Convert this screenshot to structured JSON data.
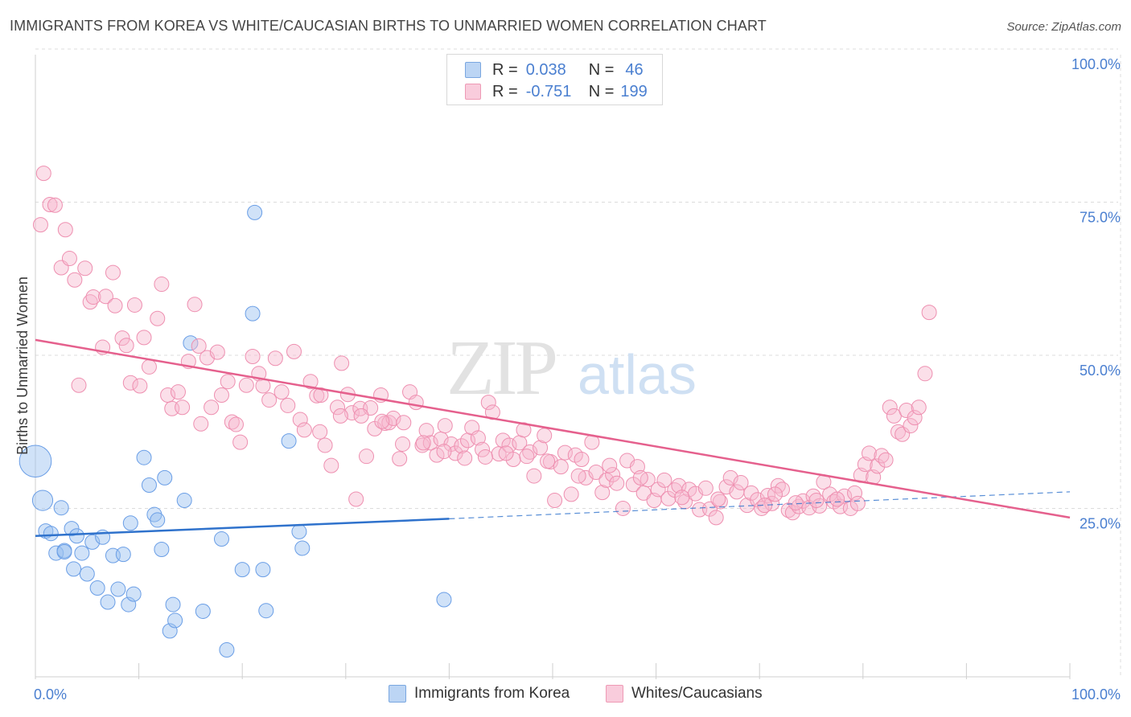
{
  "title": "IMMIGRANTS FROM KOREA VS WHITE/CAUCASIAN BIRTHS TO UNMARRIED WOMEN CORRELATION CHART",
  "source": "Source: ZipAtlas.com",
  "watermark": {
    "zip": "ZIP",
    "atlas": "atlas"
  },
  "legend": {
    "r_label": "R =",
    "n_label": "N =",
    "rows": [
      {
        "r": "0.038",
        "n": "46",
        "color": "#a9c8f0",
        "border": "#7aa7e0"
      },
      {
        "r": "-0.751",
        "n": "199",
        "color": "#f7bfd2",
        "border": "#ee9ab5"
      }
    ]
  },
  "bottom_legend": [
    {
      "label": "Immigrants from Korea",
      "color": "#a9c8f0",
      "border": "#7aa7e0"
    },
    {
      "label": "Whites/Caucasians",
      "color": "#f7bfd2",
      "border": "#ee9ab5"
    }
  ],
  "chart_data": {
    "type": "scatter",
    "title": "IMMIGRANTS FROM KOREA VS WHITE/CAUCASIAN BIRTHS TO UNMARRIED WOMEN CORRELATION CHART",
    "xlabel": "",
    "ylabel": "Births to Unmarried Women",
    "xlim": [
      0,
      100
    ],
    "ylim": [
      0,
      100
    ],
    "x_tick_labels": [
      "0.0%",
      "100.0%"
    ],
    "y_tick_labels": [
      "25.0%",
      "50.0%",
      "75.0%",
      "100.0%"
    ],
    "y_ticks": [
      25,
      50,
      75,
      100
    ],
    "grid": true,
    "series": [
      {
        "name": "Immigrants from Korea",
        "color": "#6a9ee6",
        "fill": "rgba(150,190,240,0.45)",
        "trend": {
          "x": [
            0,
            40
          ],
          "y": [
            23.0,
            25.8
          ],
          "dashed_to": [
            100,
            30.2
          ],
          "line_color": "#2f72cc"
        },
        "points": [
          [
            0,
            35.2,
            2.2
          ],
          [
            0.7,
            28.8,
            1.4
          ],
          [
            1,
            23.8,
            1
          ],
          [
            1.5,
            23.4,
            1
          ],
          [
            2.5,
            27.6,
            1
          ],
          [
            3.5,
            24.2,
            1
          ],
          [
            2,
            20.2,
            1
          ],
          [
            4,
            23,
            1
          ],
          [
            3.7,
            17.6,
            1
          ],
          [
            2.8,
            20.6,
            1
          ],
          [
            5.5,
            22,
            1
          ],
          [
            6.5,
            22.8,
            1
          ],
          [
            4.5,
            20.2,
            1
          ],
          [
            5,
            16.8,
            1
          ],
          [
            6,
            14.5,
            1
          ],
          [
            7,
            12.2,
            1
          ],
          [
            7.5,
            19.8,
            1
          ],
          [
            8,
            14.3,
            1
          ],
          [
            8.5,
            20,
            1
          ],
          [
            9,
            11.8,
            1
          ],
          [
            9.5,
            13.5,
            1
          ],
          [
            10.5,
            35.8,
            1
          ],
          [
            11,
            31.3,
            1
          ],
          [
            11.5,
            26.5,
            1
          ],
          [
            11.8,
            25.6,
            1
          ],
          [
            12.2,
            20.8,
            1
          ],
          [
            12.5,
            32.5,
            1
          ],
          [
            13,
            7.5,
            1
          ],
          [
            13.5,
            9.2,
            1
          ],
          [
            13.3,
            11.8,
            1
          ],
          [
            14.4,
            28.8,
            1
          ],
          [
            15,
            54.5,
            1
          ],
          [
            16.2,
            10.7,
            1
          ],
          [
            18,
            22.5,
            1
          ],
          [
            18.5,
            4.4,
            1
          ],
          [
            20,
            17.5,
            1
          ],
          [
            21,
            59.3,
            1
          ],
          [
            21.2,
            75.8,
            1
          ],
          [
            22,
            17.5,
            1
          ],
          [
            22.3,
            10.8,
            1
          ],
          [
            24.5,
            38.5,
            1
          ],
          [
            25.5,
            23.7,
            1
          ],
          [
            25.8,
            21,
            1
          ],
          [
            39.5,
            12.6,
            1
          ],
          [
            2.8,
            20.4,
            1
          ],
          [
            9.2,
            25.1,
            1
          ]
        ]
      },
      {
        "name": "Whites/Caucasians",
        "color": "#ee8fb0",
        "fill": "rgba(247,185,206,0.45)",
        "trend": {
          "x": [
            0,
            100
          ],
          "y": [
            55.0,
            26.0
          ],
          "line_color": "#e5608d"
        },
        "points": [
          [
            0.5,
            73.8
          ],
          [
            0.8,
            82.2
          ],
          [
            1.4,
            77.1
          ],
          [
            1.9,
            77.0
          ],
          [
            2.5,
            66.8
          ],
          [
            2.9,
            73.0
          ],
          [
            3.3,
            68.3
          ],
          [
            3.8,
            64.8
          ],
          [
            4.2,
            47.6
          ],
          [
            4.8,
            66.7
          ],
          [
            5.3,
            61.2
          ],
          [
            5.6,
            62.0
          ],
          [
            6.5,
            53.8
          ],
          [
            6.8,
            62.1
          ],
          [
            7.5,
            66.0
          ],
          [
            7.7,
            60.6
          ],
          [
            8.4,
            55.3
          ],
          [
            8.8,
            54.1
          ],
          [
            9.2,
            48.0
          ],
          [
            9.6,
            60.7
          ],
          [
            10.1,
            47.5
          ],
          [
            10.5,
            55.4
          ],
          [
            11.0,
            50.6
          ],
          [
            11.8,
            58.5
          ],
          [
            12.2,
            64.1
          ],
          [
            12.8,
            46.0
          ],
          [
            13.2,
            43.8
          ],
          [
            13.8,
            46.5
          ],
          [
            14.2,
            44.0
          ],
          [
            14.8,
            51.5
          ],
          [
            15.4,
            60.8
          ],
          [
            15.8,
            54.0
          ],
          [
            16.0,
            41.3
          ],
          [
            16.6,
            52.1
          ],
          [
            17.0,
            44.0
          ],
          [
            17.6,
            53.0
          ],
          [
            18.0,
            46.0
          ],
          [
            18.6,
            48.2
          ],
          [
            19.0,
            41.6
          ],
          [
            19.4,
            41.2
          ],
          [
            19.8,
            38.3
          ],
          [
            20.4,
            47.6
          ],
          [
            21.0,
            52.3
          ],
          [
            21.6,
            49.5
          ],
          [
            22.0,
            47.5
          ],
          [
            22.6,
            45.2
          ],
          [
            23.2,
            52.0
          ],
          [
            23.8,
            46.5
          ],
          [
            24.4,
            44.3
          ],
          [
            25.0,
            53.1
          ],
          [
            25.6,
            42.0
          ],
          [
            26.0,
            40.3
          ],
          [
            26.6,
            48.2
          ],
          [
            27.2,
            45.9
          ],
          [
            27.6,
            46.0
          ],
          [
            28.0,
            37.8
          ],
          [
            28.6,
            34.5
          ],
          [
            29.2,
            44.0
          ],
          [
            29.6,
            51.2
          ],
          [
            30.2,
            46.1
          ],
          [
            30.6,
            43.1
          ],
          [
            31.0,
            29.0
          ],
          [
            31.4,
            43.8
          ],
          [
            32.0,
            36.0
          ],
          [
            32.4,
            43.9
          ],
          [
            32.8,
            40.5
          ],
          [
            33.4,
            46.0
          ],
          [
            33.8,
            41.4
          ],
          [
            34.2,
            41.5
          ],
          [
            34.6,
            42.2
          ],
          [
            35.2,
            35.6
          ],
          [
            35.6,
            41.5
          ],
          [
            36.2,
            46.5
          ],
          [
            36.8,
            44.8
          ],
          [
            37.4,
            37.8
          ],
          [
            37.8,
            40.2
          ],
          [
            38.2,
            38.2
          ],
          [
            38.8,
            36.2
          ],
          [
            39.2,
            38.8
          ],
          [
            39.6,
            41.0
          ],
          [
            40.2,
            38.0
          ],
          [
            40.6,
            36.5
          ],
          [
            41.2,
            37.7
          ],
          [
            41.8,
            38.6
          ],
          [
            42.2,
            40.7
          ],
          [
            42.8,
            39.0
          ],
          [
            43.2,
            37.1
          ],
          [
            43.8,
            44.8
          ],
          [
            44.2,
            43.2
          ],
          [
            44.8,
            36.4
          ],
          [
            45.2,
            38.6
          ],
          [
            45.8,
            37.8
          ],
          [
            46.2,
            35.5
          ],
          [
            46.8,
            38.2
          ],
          [
            47.2,
            40.3
          ],
          [
            47.8,
            36.7
          ],
          [
            48.2,
            32.8
          ],
          [
            48.8,
            37.4
          ],
          [
            49.2,
            39.4
          ],
          [
            49.8,
            35.1
          ],
          [
            50.2,
            28.8
          ],
          [
            50.8,
            34.3
          ],
          [
            51.2,
            36.6
          ],
          [
            51.8,
            29.8
          ],
          [
            52.2,
            36.2
          ],
          [
            52.8,
            35.5
          ],
          [
            53.2,
            32.5
          ],
          [
            53.8,
            38.3
          ],
          [
            54.2,
            33.4
          ],
          [
            54.8,
            30.1
          ],
          [
            55.2,
            32.1
          ],
          [
            55.8,
            33.0
          ],
          [
            56.2,
            31.6
          ],
          [
            56.8,
            27.5
          ],
          [
            57.2,
            35.3
          ],
          [
            57.8,
            31.4
          ],
          [
            58.2,
            34.3
          ],
          [
            58.8,
            30.0
          ],
          [
            59.2,
            32.2
          ],
          [
            59.8,
            28.8
          ],
          [
            60.2,
            30.6
          ],
          [
            60.8,
            32.1
          ],
          [
            61.2,
            29.1
          ],
          [
            61.8,
            30.5
          ],
          [
            62.2,
            31.2
          ],
          [
            62.8,
            28.6
          ],
          [
            63.2,
            30.6
          ],
          [
            63.8,
            29.9
          ],
          [
            64.2,
            27.3
          ],
          [
            64.8,
            30.8
          ],
          [
            65.2,
            27.4
          ],
          [
            65.8,
            26.0
          ],
          [
            66.2,
            28.6
          ],
          [
            66.8,
            31.0
          ],
          [
            67.2,
            32.5
          ],
          [
            67.8,
            30.2
          ],
          [
            68.2,
            31.7
          ],
          [
            68.8,
            28.0
          ],
          [
            69.2,
            30.0
          ],
          [
            69.8,
            28.9
          ],
          [
            70.2,
            27.5
          ],
          [
            70.8,
            29.6
          ],
          [
            71.2,
            28.3
          ],
          [
            71.8,
            31.2
          ],
          [
            72.2,
            30.6
          ],
          [
            72.8,
            27.2
          ],
          [
            73.2,
            26.8
          ],
          [
            73.8,
            27.8
          ],
          [
            74.2,
            28.7
          ],
          [
            74.8,
            27.6
          ],
          [
            75.2,
            29.5
          ],
          [
            75.8,
            27.9
          ],
          [
            76.2,
            31.8
          ],
          [
            76.8,
            29.8
          ],
          [
            77.2,
            28.6
          ],
          [
            77.8,
            27.8
          ],
          [
            78.2,
            29.5
          ],
          [
            78.8,
            27.5
          ],
          [
            79.2,
            30.0
          ],
          [
            79.8,
            32.9
          ],
          [
            80.2,
            34.7
          ],
          [
            80.6,
            36.5
          ],
          [
            81.0,
            32.6
          ],
          [
            81.4,
            34.4
          ],
          [
            81.8,
            36.1
          ],
          [
            82.2,
            35.4
          ],
          [
            82.6,
            44.0
          ],
          [
            83.0,
            42.6
          ],
          [
            83.4,
            40.0
          ],
          [
            83.8,
            39.6
          ],
          [
            84.2,
            43.5
          ],
          [
            84.6,
            41.0
          ],
          [
            85.0,
            42.3
          ],
          [
            85.4,
            44.0
          ],
          [
            86.0,
            49.5
          ],
          [
            86.4,
            59.5
          ],
          [
            70.5,
            28.0
          ],
          [
            66.0,
            29.0
          ],
          [
            62.5,
            29.3
          ],
          [
            58.5,
            32.5
          ],
          [
            55.5,
            34.5
          ],
          [
            52.5,
            32.8
          ],
          [
            49.5,
            35.2
          ],
          [
            47.5,
            36.0
          ],
          [
            45.5,
            36.5
          ],
          [
            43.5,
            35.9
          ],
          [
            41.5,
            35.7
          ],
          [
            39.5,
            36.8
          ],
          [
            37.5,
            38.2
          ],
          [
            35.5,
            38.0
          ],
          [
            33.5,
            41.7
          ],
          [
            31.5,
            42.6
          ],
          [
            29.5,
            42.6
          ],
          [
            27.5,
            40.0
          ],
          [
            71.5,
            29.8
          ],
          [
            73.5,
            28.4
          ],
          [
            75.5,
            28.8
          ],
          [
            77.5,
            29.0
          ],
          [
            79.5,
            28.3
          ]
        ]
      }
    ]
  }
}
